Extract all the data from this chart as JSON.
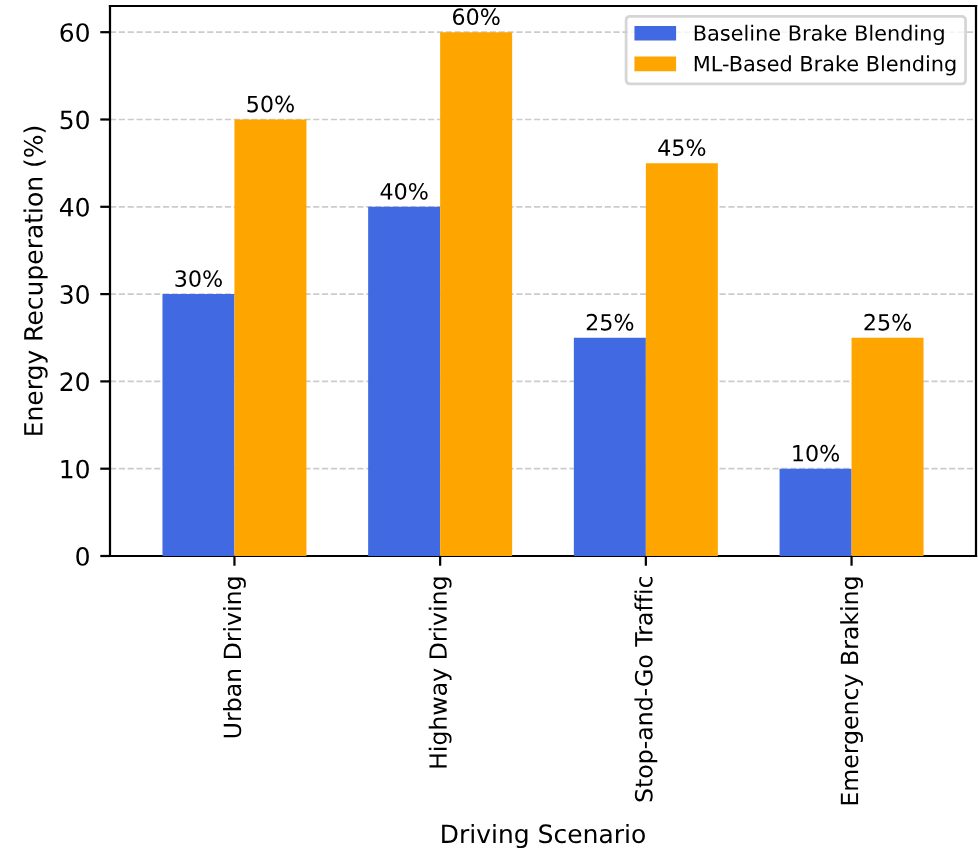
{
  "chart_data": {
    "type": "bar",
    "xlabel": "Driving Scenario",
    "ylabel": "Energy Recuperation (%)",
    "categories": [
      "Urban Driving",
      "Highway Driving",
      "Stop-and-Go Traffic",
      "Emergency Braking"
    ],
    "series": [
      {
        "name": "Baseline Brake Blending",
        "color": "#4169e1",
        "values": [
          30,
          40,
          25,
          10
        ],
        "value_labels": [
          "30%",
          "40%",
          "25%",
          "10%"
        ]
      },
      {
        "name": "ML-Based Brake Blending",
        "color": "#ffa500",
        "values": [
          50,
          60,
          45,
          25
        ],
        "value_labels": [
          "50%",
          "60%",
          "45%",
          "25%"
        ]
      }
    ],
    "ylim": [
      0,
      63
    ],
    "yticks": [
      0,
      10,
      20,
      30,
      40,
      50,
      60
    ],
    "grid": "y",
    "legend": "top right"
  }
}
